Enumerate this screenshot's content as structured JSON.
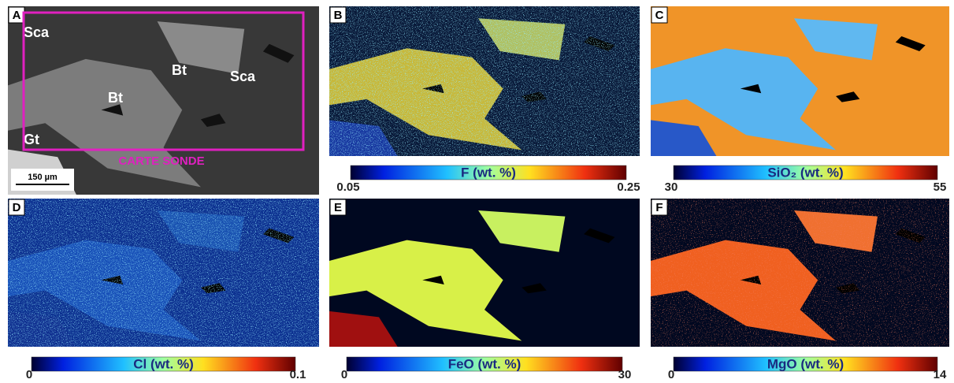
{
  "panels": [
    {
      "letter": "A",
      "annotations": [
        "Sca",
        "Bt",
        "Bt",
        "Sca",
        "Gt"
      ],
      "probe_label": "CARTE SONDE",
      "scale_bar": "150 µm"
    },
    {
      "letter": "B",
      "colorbar": {
        "label": "F (wt. %)",
        "min": 0.05,
        "max": 0.25
      }
    },
    {
      "letter": "C",
      "colorbar": {
        "label": "SiO₂ (wt. %)",
        "min": 30,
        "max": 55
      }
    },
    {
      "letter": "D",
      "colorbar": {
        "label": "Cl (wt. %)",
        "min": 0,
        "max": 0.1
      }
    },
    {
      "letter": "E",
      "colorbar": {
        "label": "FeO (wt. %)",
        "min": 0,
        "max": 30
      }
    },
    {
      "letter": "F",
      "colorbar": {
        "label": "MgO (wt. %)",
        "min": 0,
        "max": 14
      }
    }
  ]
}
